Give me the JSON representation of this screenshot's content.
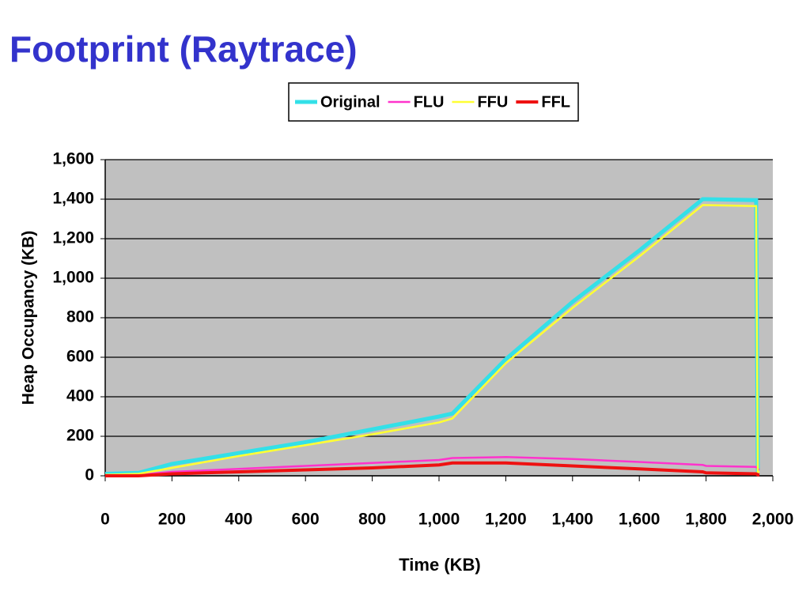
{
  "chart_data": {
    "type": "line",
    "title": "Footprint (Raytrace)",
    "x_label": "Time (KB)",
    "y_label": "Heap Occupancy (KB)",
    "x": [
      0,
      100,
      200,
      400,
      600,
      800,
      1000,
      1040,
      1200,
      1400,
      1600,
      1790,
      1800,
      1950,
      1955,
      1960
    ],
    "series": [
      {
        "name": "Original",
        "color": "#33e0e8",
        "values": [
          10,
          15,
          60,
          115,
          170,
          235,
          300,
          315,
          590,
          880,
          1140,
          1400,
          1400,
          1395,
          30,
          30
        ]
      },
      {
        "name": "FLU",
        "color": "#ff33cc",
        "values": [
          0,
          5,
          20,
          35,
          50,
          65,
          80,
          90,
          95,
          85,
          70,
          55,
          50,
          45,
          35,
          30
        ]
      },
      {
        "name": "FFU",
        "color": "#ffff33",
        "values": [
          5,
          10,
          40,
          100,
          155,
          210,
          270,
          290,
          570,
          850,
          1110,
          1370,
          1370,
          1365,
          20,
          20
        ]
      },
      {
        "name": "FFL",
        "color": "#ee1111",
        "values": [
          0,
          0,
          10,
          20,
          30,
          40,
          55,
          65,
          65,
          50,
          35,
          20,
          15,
          10,
          5,
          5
        ]
      }
    ],
    "xlim": [
      0,
      2000
    ],
    "xticks": [
      0,
      200,
      400,
      600,
      800,
      {
        "value": 1000,
        "label": "1,000"
      },
      {
        "value": 1200,
        "label": "1,200"
      },
      {
        "value": 1400,
        "label": "1,400"
      },
      {
        "value": 1600,
        "label": "1,600"
      },
      {
        "value": 1800,
        "label": "1,800"
      },
      {
        "value": 2000,
        "label": "2,000"
      }
    ],
    "ylim": [
      0,
      1600
    ],
    "yticks": [
      0,
      200,
      400,
      600,
      800,
      {
        "value": 1000,
        "label": "1,000"
      },
      {
        "value": 1200,
        "label": "1,200"
      },
      {
        "value": 1400,
        "label": "1,400"
      },
      {
        "value": 1600,
        "label": "1,600"
      }
    ],
    "grid": true,
    "legend": "top",
    "plot_background": "#c0c0c0"
  }
}
